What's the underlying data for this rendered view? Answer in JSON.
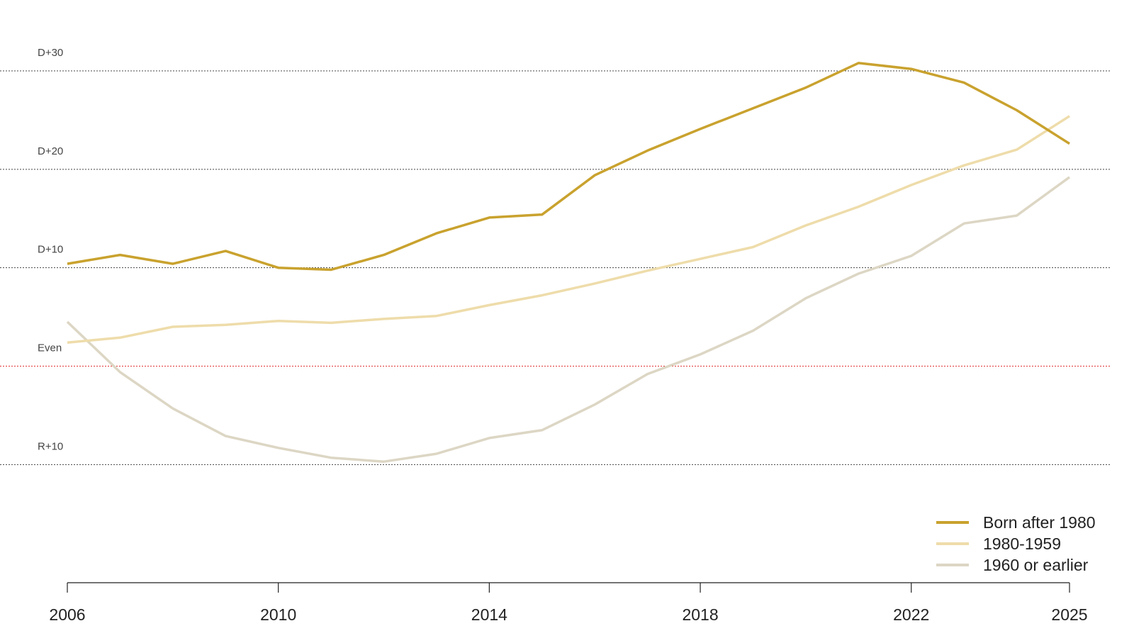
{
  "chart_data": {
    "type": "line",
    "x": [
      2006,
      2007,
      2008,
      2009,
      2010,
      2011,
      2012,
      2013,
      2014,
      2015,
      2016,
      2017,
      2018,
      2019,
      2020,
      2021,
      2022,
      2023,
      2024,
      2025
    ],
    "series": [
      {
        "name": "Born after 1980",
        "color": "#c9a22e",
        "values": [
          10.4,
          11.3,
          10.4,
          11.7,
          10.0,
          9.8,
          11.3,
          13.5,
          15.1,
          15.4,
          19.4,
          21.9,
          24.1,
          26.2,
          28.3,
          30.8,
          30.2,
          28.8,
          26.0,
          22.6
        ]
      },
      {
        "name": "1980-1959",
        "color": "#eedcaa",
        "values": [
          2.4,
          2.9,
          4.0,
          4.2,
          4.6,
          4.4,
          4.8,
          5.1,
          6.2,
          7.2,
          8.4,
          9.7,
          10.9,
          12.1,
          14.3,
          16.2,
          18.4,
          20.4,
          22.0,
          25.4
        ]
      },
      {
        "name": "1960 or earlier",
        "color": "#dcd6c4",
        "values": [
          4.5,
          -0.6,
          -4.3,
          -7.1,
          -8.3,
          -9.3,
          -9.7,
          -8.9,
          -7.3,
          -6.5,
          -3.9,
          -0.8,
          1.2,
          3.6,
          6.9,
          9.4,
          11.2,
          14.5,
          15.3,
          19.2
        ]
      }
    ],
    "xlim": [
      2006,
      2025
    ],
    "xticks": [
      2006,
      2010,
      2014,
      2018,
      2022,
      2025
    ],
    "ylim": [
      -22,
      37.2
    ],
    "yticks": [
      {
        "value": 30,
        "label": "D+30"
      },
      {
        "value": 20,
        "label": "D+20"
      },
      {
        "value": 10,
        "label": "D+10"
      },
      {
        "value": 0,
        "label": "Even"
      },
      {
        "value": -10,
        "label": "R+10"
      }
    ],
    "grid": true,
    "legend": "bottom-right"
  }
}
